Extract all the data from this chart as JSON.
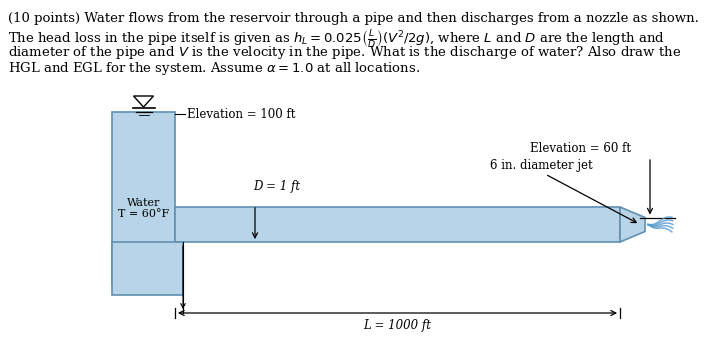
{
  "bg_color": "#ffffff",
  "text_color": "#000000",
  "water_color": "#b8d4e8",
  "pipe_edge_color": "#6090b0",
  "figsize": [
    7.13,
    3.42
  ],
  "dpi": 100,
  "elevation_100_label": "Elevation = 100 ft",
  "elevation_60_label": "Elevation = 60 ft",
  "D_label": "D = 1 ft",
  "L_label": "L = 1000 ft",
  "jet_label": "6 in. diameter jet",
  "water_label": "Water\nT = 60°F"
}
